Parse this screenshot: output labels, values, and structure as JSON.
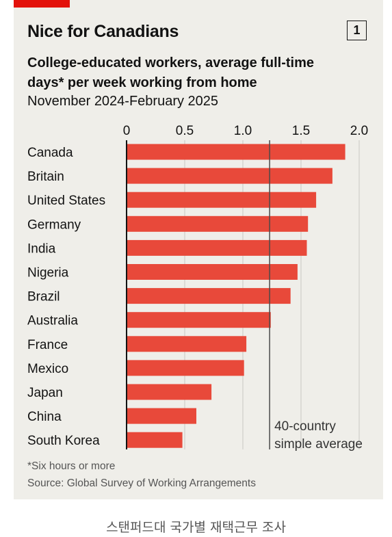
{
  "header": {
    "title": "Nice for Canadians",
    "badge": "1",
    "subtitle_line1": "College-educated workers, average full-time",
    "subtitle_line2": "days* per week working from home",
    "period": "November 2024-February 2025"
  },
  "footer": {
    "footnote": "*Six hours or more",
    "source": "Source: Global Survey of Working Arrangements"
  },
  "caption": "스탠퍼드대 국가별 재택근무 조사",
  "colors": {
    "bar": "#e8493a",
    "background": "#efeee9",
    "accent": "#e3120b",
    "text": "#121212"
  },
  "chart_data": {
    "type": "bar",
    "orientation": "horizontal",
    "categories": [
      "Canada",
      "Britain",
      "United States",
      "Germany",
      "India",
      "Nigeria",
      "Brazil",
      "Australia",
      "France",
      "Mexico",
      "Japan",
      "China",
      "South Korea"
    ],
    "values": [
      1.88,
      1.77,
      1.63,
      1.56,
      1.55,
      1.47,
      1.41,
      1.24,
      1.03,
      1.01,
      0.73,
      0.6,
      0.48
    ],
    "x_ticks": [
      "0",
      "0.5",
      "1.0",
      "1.5",
      "2.0"
    ],
    "x_tick_values": [
      0,
      0.5,
      1.0,
      1.5,
      2.0
    ],
    "xlim": [
      0,
      2.0
    ],
    "grid": true,
    "reference_line": {
      "value": 1.23,
      "label_line1": "40-country",
      "label_line2": "simple average"
    }
  }
}
